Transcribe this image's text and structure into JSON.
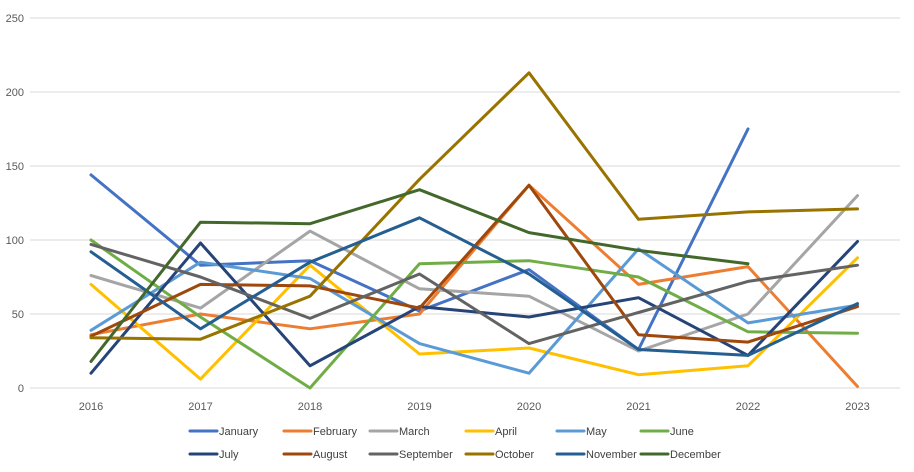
{
  "chart_data": {
    "type": "line",
    "title": "",
    "xlabel": "",
    "ylabel": "",
    "x": [
      "2016",
      "2017",
      "2018",
      "2019",
      "2020",
      "2021",
      "2022",
      "2023"
    ],
    "ylim": [
      0,
      250
    ],
    "yticks": [
      "0",
      "50",
      "100",
      "150",
      "200",
      "250"
    ],
    "grid": true,
    "legend_position": "bottom",
    "series": [
      {
        "name": "January",
        "color": "#4472c4",
        "values": [
          144,
          83,
          86,
          52,
          80,
          26,
          175,
          null
        ]
      },
      {
        "name": "February",
        "color": "#ed7d31",
        "values": [
          36,
          50,
          40,
          50,
          137,
          70,
          82,
          1
        ]
      },
      {
        "name": "March",
        "color": "#a5a5a5",
        "values": [
          76,
          54,
          106,
          67,
          62,
          25,
          50,
          130
        ]
      },
      {
        "name": "April",
        "color": "#ffc000",
        "values": [
          70,
          6,
          83,
          23,
          27,
          9,
          15,
          88
        ]
      },
      {
        "name": "May",
        "color": "#5b9bd5",
        "values": [
          39,
          85,
          74,
          30,
          10,
          94,
          44,
          56
        ]
      },
      {
        "name": "June",
        "color": "#70ad47",
        "values": [
          100,
          48,
          0,
          84,
          86,
          75,
          38,
          37
        ]
      },
      {
        "name": "July",
        "color": "#264478",
        "values": [
          10,
          98,
          15,
          55,
          48,
          61,
          22,
          99
        ]
      },
      {
        "name": "August",
        "color": "#9e480e",
        "values": [
          35,
          70,
          69,
          54,
          137,
          36,
          31,
          55
        ]
      },
      {
        "name": "September",
        "color": "#636363",
        "values": [
          97,
          75,
          47,
          77,
          30,
          51,
          72,
          83
        ]
      },
      {
        "name": "October",
        "color": "#997300",
        "values": [
          34,
          33,
          62,
          141,
          213,
          114,
          119,
          121
        ]
      },
      {
        "name": "November",
        "color": "#255e91",
        "values": [
          92,
          40,
          85,
          115,
          77,
          26,
          22,
          57
        ]
      },
      {
        "name": "December",
        "color": "#43682b",
        "values": [
          18,
          112,
          111,
          134,
          105,
          93,
          84,
          null
        ]
      }
    ]
  }
}
